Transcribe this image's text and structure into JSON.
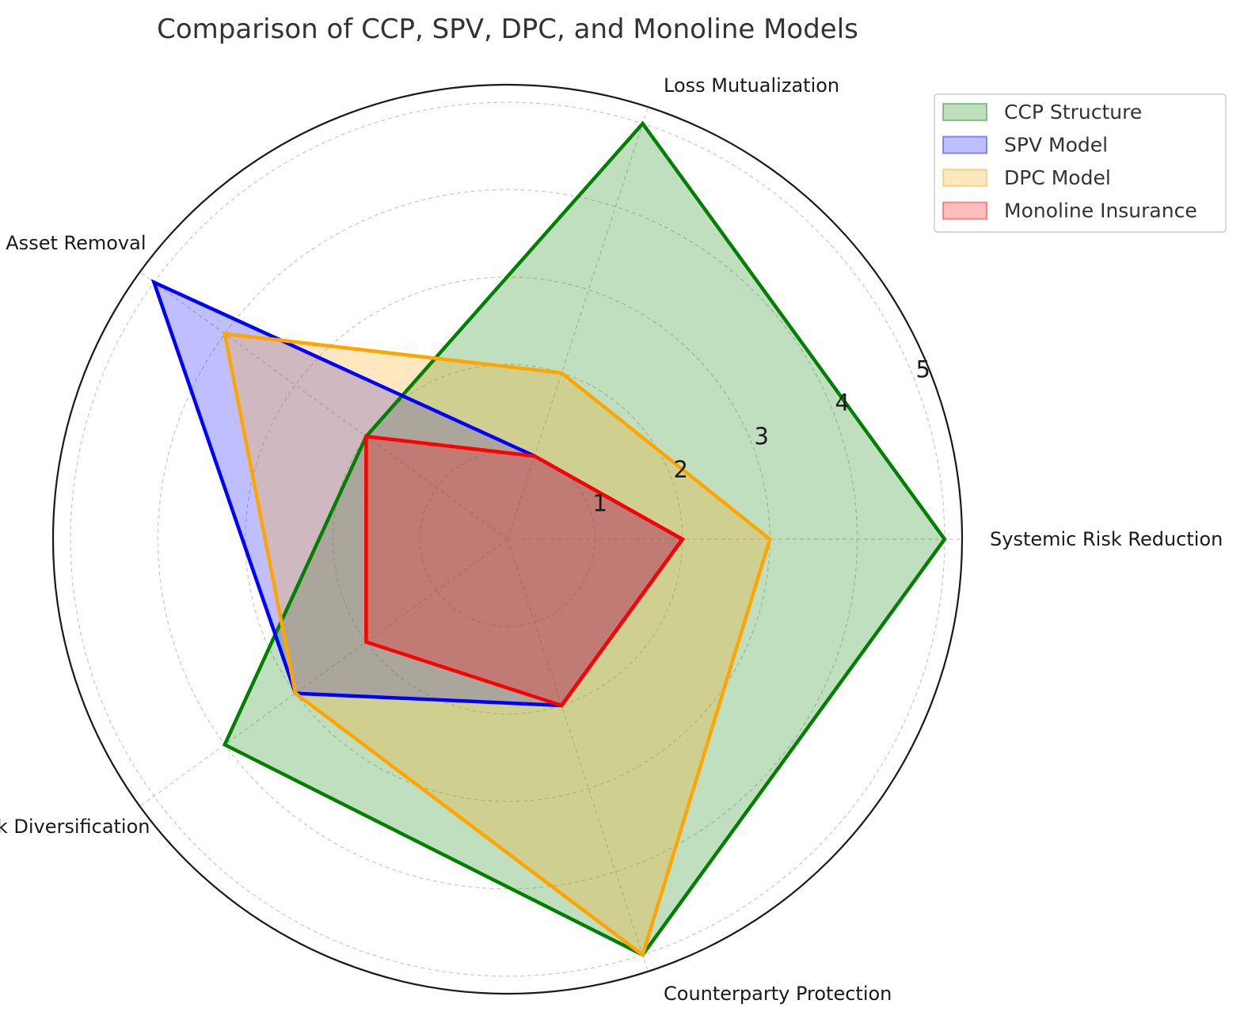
{
  "chart_data": {
    "type": "radar",
    "title": "Comparison of CCP, SPV, DPC, and Monoline Models",
    "categories": [
      "Systemic Risk Reduction",
      "Loss Mutualization",
      "Asset Removal",
      "Risk Diversification",
      "Counterparty Protection"
    ],
    "radial_ticks": [
      1,
      2,
      3,
      4,
      5
    ],
    "rlim": [
      0,
      5.2
    ],
    "grid": true,
    "legend_position": "upper-right, outside plot",
    "series": [
      {
        "name": "CCP Structure",
        "values": [
          5,
          5,
          2,
          4,
          5
        ],
        "color": "#008000"
      },
      {
        "name": "SPV Model",
        "values": [
          2,
          1,
          5,
          3,
          2
        ],
        "color": "#0000ff"
      },
      {
        "name": "DPC Model",
        "values": [
          3,
          2,
          4,
          3,
          5
        ],
        "color": "#ffa500"
      },
      {
        "name": "Monoline Insurance",
        "values": [
          2,
          1,
          2,
          2,
          2
        ],
        "color": "#ff0000"
      }
    ]
  }
}
